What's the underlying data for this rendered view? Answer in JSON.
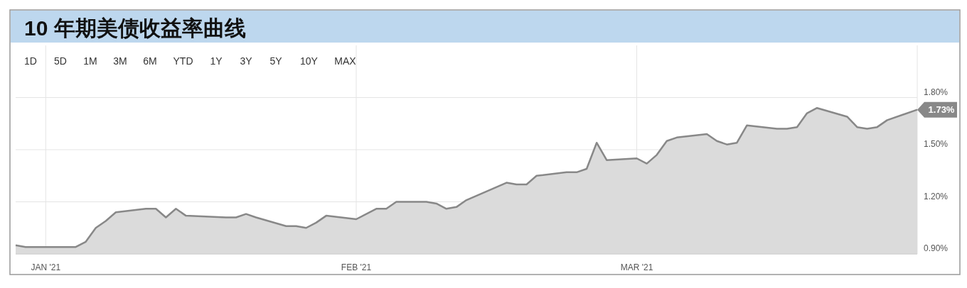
{
  "chart_data": {
    "type": "area",
    "title": "10 年期美债收益率曲线",
    "annotations": [
      "1D",
      "5D",
      "1M",
      "3M",
      "6M",
      "YTD",
      "1Y",
      "3Y",
      "5Y",
      "10Y",
      "MAX"
    ],
    "x": [
      "2020-12-29",
      "2020-12-30",
      "2020-12-31",
      "2021-01-04",
      "2021-01-05",
      "2021-01-06",
      "2021-01-07",
      "2021-01-08",
      "2021-01-11",
      "2021-01-12",
      "2021-01-13",
      "2021-01-14",
      "2021-01-15",
      "2021-01-19",
      "2021-01-20",
      "2021-01-21",
      "2021-01-22",
      "2021-01-25",
      "2021-01-26",
      "2021-01-27",
      "2021-01-28",
      "2021-01-29",
      "2021-02-01",
      "2021-02-03",
      "2021-02-04",
      "2021-02-05",
      "2021-02-08",
      "2021-02-09",
      "2021-02-10",
      "2021-02-11",
      "2021-02-12",
      "2021-02-16",
      "2021-02-17",
      "2021-02-18",
      "2021-02-19",
      "2021-02-22",
      "2021-02-23",
      "2021-02-24",
      "2021-02-25",
      "2021-02-26",
      "2021-03-01",
      "2021-03-02",
      "2021-03-03",
      "2021-03-04",
      "2021-03-05",
      "2021-03-08",
      "2021-03-09",
      "2021-03-10",
      "2021-03-11",
      "2021-03-12",
      "2021-03-15",
      "2021-03-16",
      "2021-03-17",
      "2021-03-18",
      "2021-03-19",
      "2021-03-22",
      "2021-03-23",
      "2021-03-24",
      "2021-03-25",
      "2021-03-26",
      "2021-03-29"
    ],
    "series": [
      {
        "color": "#888888",
        "values": [
          0.95,
          0.94,
          0.94,
          0.94,
          0.97,
          1.05,
          1.09,
          1.14,
          1.16,
          1.16,
          1.11,
          1.16,
          1.12,
          1.11,
          1.11,
          1.13,
          1.11,
          1.06,
          1.06,
          1.05,
          1.08,
          1.12,
          1.1,
          1.16,
          1.16,
          1.2,
          1.2,
          1.19,
          1.16,
          1.17,
          1.21,
          1.31,
          1.3,
          1.3,
          1.35,
          1.37,
          1.37,
          1.39,
          1.54,
          1.44,
          1.45,
          1.42,
          1.47,
          1.55,
          1.57,
          1.59,
          1.55,
          1.53,
          1.54,
          1.64,
          1.62,
          1.62,
          1.63,
          1.71,
          1.74,
          1.69,
          1.63,
          1.62,
          1.63,
          1.67,
          1.73
        ],
        "value_labels": [
          null,
          null,
          null,
          null,
          null,
          null,
          null,
          null,
          null,
          null,
          null,
          null,
          null,
          null,
          null,
          null,
          null,
          null,
          null,
          null,
          null,
          null,
          null,
          null,
          null,
          null,
          null,
          null,
          null,
          null,
          null,
          null,
          null,
          null,
          null,
          null,
          null,
          null,
          null,
          null,
          null,
          null,
          null,
          null,
          null,
          null,
          null,
          null,
          null,
          null,
          null,
          null,
          null,
          null,
          null,
          null,
          null,
          null,
          null,
          null,
          "1.73%"
        ]
      }
    ],
    "xlim": [
      "2020-12-29",
      "2021-03-29"
    ],
    "xticks": [
      {
        "value": "2021-01-01",
        "label": "JAN '21"
      },
      {
        "value": "2021-02-01",
        "label": "FEB '21"
      },
      {
        "value": "2021-03-01",
        "label": "MAR '21"
      }
    ],
    "ylim": [
      0.9,
      2.1
    ],
    "yticks": [
      {
        "value": 0.9,
        "label": "0.90%"
      },
      {
        "value": 1.2,
        "label": "1.20%"
      },
      {
        "value": 1.5,
        "label": "1.50%"
      },
      {
        "value": 1.8,
        "label": "1.80%"
      }
    ],
    "grid": true
  }
}
